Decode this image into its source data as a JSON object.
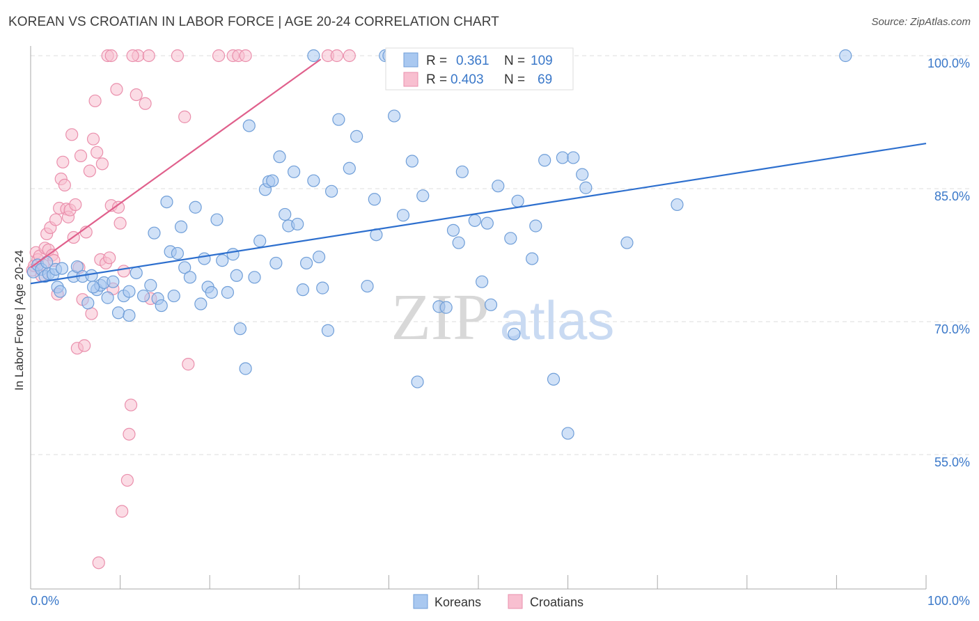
{
  "title": "KOREAN VS CROATIAN IN LABOR FORCE | AGE 20-24 CORRELATION CHART",
  "source": "Source: ZipAtlas.com",
  "watermark": {
    "zip": "ZIP",
    "atlas": "atlas"
  },
  "colors": {
    "blue_fill": "#a9c8f0",
    "blue_stroke": "#6f9ed8",
    "blue_line": "#2d6fce",
    "pink_fill": "#f8bfd0",
    "pink_stroke": "#ea8fac",
    "pink_line": "#e0608c",
    "tick_text": "#3a78c9",
    "grid": "#dedede"
  },
  "legend": {
    "rows": [
      {
        "r_label": "R =",
        "r_value": "0.361",
        "n_label": "N =",
        "n_value": "109"
      },
      {
        "r_label": "R =",
        "r_value": "0.403",
        "n_label": "N =",
        "n_value": "69"
      }
    ]
  },
  "bottom_legend": [
    "Koreans",
    "Croatians"
  ],
  "chart_data": {
    "type": "scatter",
    "title": "KOREAN VS CROATIAN IN LABOR FORCE | AGE 20-24 CORRELATION CHART",
    "ylabel": "In Labor Force | Age 20-24",
    "xlabel": "",
    "xlim": [
      0,
      100
    ],
    "ylim": [
      41,
      102
    ],
    "x_tick_labels": [
      "0.0%",
      "100.0%"
    ],
    "y_ticks": [
      55,
      70,
      85,
      100
    ],
    "y_tick_labels": [
      "55.0%",
      "70.0%",
      "85.0%",
      "100.0%"
    ],
    "grid": true,
    "legend_position": "top-center",
    "series": [
      {
        "name": "Koreans",
        "r": 0.361,
        "n": 109,
        "trend": {
          "x": [
            0,
            100
          ],
          "y": [
            74.3,
            90.1
          ]
        },
        "points": [
          [
            0.3,
            75.6
          ],
          [
            0.8,
            76.4
          ],
          [
            1.2,
            75.9
          ],
          [
            1.6,
            75.1
          ],
          [
            1.8,
            76.7
          ],
          [
            2.0,
            75.4
          ],
          [
            2.5,
            75.3
          ],
          [
            2.8,
            75.9
          ],
          [
            3.0,
            73.9
          ],
          [
            3.3,
            73.4
          ],
          [
            3.5,
            76.0
          ],
          [
            4.8,
            75.1
          ],
          [
            5.2,
            76.2
          ],
          [
            5.8,
            75.1
          ],
          [
            6.4,
            72.1
          ],
          [
            6.8,
            75.2
          ],
          [
            7.4,
            73.6
          ],
          [
            7.8,
            74.1
          ],
          [
            8.2,
            74.4
          ],
          [
            8.6,
            72.7
          ],
          [
            9.2,
            74.5
          ],
          [
            9.8,
            71.0
          ],
          [
            10.4,
            72.9
          ],
          [
            11.0,
            70.7
          ],
          [
            11.8,
            75.5
          ],
          [
            12.6,
            72.9
          ],
          [
            13.4,
            74.1
          ],
          [
            13.8,
            80.0
          ],
          [
            14.2,
            72.6
          ],
          [
            14.6,
            71.8
          ],
          [
            15.2,
            83.5
          ],
          [
            15.6,
            77.9
          ],
          [
            16.0,
            72.9
          ],
          [
            16.4,
            77.7
          ],
          [
            16.8,
            80.7
          ],
          [
            17.2,
            76.1
          ],
          [
            17.8,
            75.0
          ],
          [
            18.4,
            82.9
          ],
          [
            19.0,
            72.0
          ],
          [
            19.4,
            77.1
          ],
          [
            19.8,
            73.9
          ],
          [
            20.2,
            73.3
          ],
          [
            20.8,
            81.5
          ],
          [
            21.4,
            76.9
          ],
          [
            22.0,
            73.3
          ],
          [
            22.6,
            77.6
          ],
          [
            23.0,
            75.2
          ],
          [
            23.4,
            69.2
          ],
          [
            24.0,
            64.7
          ],
          [
            24.4,
            92.1
          ],
          [
            25.0,
            75.0
          ],
          [
            25.6,
            79.1
          ],
          [
            26.2,
            84.9
          ],
          [
            26.6,
            85.8
          ],
          [
            27.0,
            85.9
          ],
          [
            27.4,
            76.6
          ],
          [
            27.8,
            88.6
          ],
          [
            28.4,
            82.1
          ],
          [
            28.8,
            80.8
          ],
          [
            29.4,
            86.9
          ],
          [
            29.8,
            81.0
          ],
          [
            30.4,
            73.6
          ],
          [
            30.8,
            76.6
          ],
          [
            31.6,
            85.9
          ],
          [
            32.2,
            77.3
          ],
          [
            32.6,
            73.8
          ],
          [
            33.2,
            69.0
          ],
          [
            33.6,
            84.7
          ],
          [
            34.4,
            92.8
          ],
          [
            35.6,
            87.3
          ],
          [
            36.4,
            90.9
          ],
          [
            37.6,
            74.0
          ],
          [
            38.4,
            83.8
          ],
          [
            38.6,
            79.8
          ],
          [
            39.6,
            100.0
          ],
          [
            40.6,
            93.2
          ],
          [
            41.6,
            82.0
          ],
          [
            42.6,
            88.1
          ],
          [
            43.2,
            63.2
          ],
          [
            43.8,
            84.2
          ],
          [
            45.6,
            71.7
          ],
          [
            46.4,
            71.6
          ],
          [
            47.2,
            80.3
          ],
          [
            47.8,
            78.9
          ],
          [
            48.2,
            86.9
          ],
          [
            49.6,
            81.4
          ],
          [
            50.4,
            74.5
          ],
          [
            51.0,
            81.1
          ],
          [
            51.4,
            71.9
          ],
          [
            52.2,
            85.3
          ],
          [
            53.6,
            79.4
          ],
          [
            54.0,
            68.6
          ],
          [
            54.4,
            83.6
          ],
          [
            56.0,
            77.1
          ],
          [
            56.4,
            80.8
          ],
          [
            57.4,
            88.2
          ],
          [
            58.4,
            63.5
          ],
          [
            59.4,
            88.5
          ],
          [
            60.0,
            57.4
          ],
          [
            60.6,
            88.5
          ],
          [
            61.6,
            86.6
          ],
          [
            62.0,
            85.1
          ],
          [
            66.6,
            78.9
          ],
          [
            72.2,
            83.2
          ],
          [
            91.0,
            100.0
          ],
          [
            31.6,
            100.0
          ],
          [
            40.0,
            100.0
          ],
          [
            11.0,
            73.4
          ],
          [
            7.0,
            73.9
          ]
        ]
      },
      {
        "name": "Croatians",
        "r": 0.403,
        "n": 69,
        "trend": {
          "x": [
            0,
            32.4
          ],
          "y": [
            76.1,
            99.6
          ]
        },
        "points": [
          [
            0.2,
            75.8
          ],
          [
            0.4,
            76.3
          ],
          [
            0.6,
            77.8
          ],
          [
            0.8,
            77.0
          ],
          [
            1.0,
            77.4
          ],
          [
            1.2,
            75.2
          ],
          [
            1.4,
            76.4
          ],
          [
            1.6,
            78.3
          ],
          [
            1.8,
            79.9
          ],
          [
            2.0,
            78.1
          ],
          [
            2.2,
            80.6
          ],
          [
            2.4,
            77.5
          ],
          [
            2.6,
            76.9
          ],
          [
            2.8,
            81.5
          ],
          [
            3.0,
            73.1
          ],
          [
            3.2,
            82.8
          ],
          [
            3.4,
            86.1
          ],
          [
            3.6,
            88.0
          ],
          [
            3.8,
            85.4
          ],
          [
            4.0,
            82.7
          ],
          [
            4.2,
            81.8
          ],
          [
            4.4,
            82.6
          ],
          [
            4.6,
            91.1
          ],
          [
            4.8,
            79.5
          ],
          [
            5.0,
            83.2
          ],
          [
            5.2,
            67.0
          ],
          [
            5.4,
            76.1
          ],
          [
            5.6,
            88.7
          ],
          [
            5.8,
            72.5
          ],
          [
            6.0,
            67.3
          ],
          [
            6.2,
            80.1
          ],
          [
            6.6,
            87.0
          ],
          [
            6.8,
            70.9
          ],
          [
            7.0,
            90.6
          ],
          [
            7.2,
            94.9
          ],
          [
            7.4,
            89.1
          ],
          [
            7.6,
            42.8
          ],
          [
            7.8,
            77.0
          ],
          [
            8.0,
            87.8
          ],
          [
            8.4,
            76.6
          ],
          [
            8.8,
            77.2
          ],
          [
            9.0,
            83.1
          ],
          [
            9.2,
            73.7
          ],
          [
            9.6,
            96.2
          ],
          [
            9.8,
            82.9
          ],
          [
            10.0,
            81.1
          ],
          [
            10.2,
            48.6
          ],
          [
            10.4,
            75.7
          ],
          [
            10.8,
            52.1
          ],
          [
            11.0,
            57.3
          ],
          [
            11.2,
            60.6
          ],
          [
            11.8,
            95.6
          ],
          [
            12.0,
            100.0
          ],
          [
            12.8,
            94.6
          ],
          [
            13.2,
            100.0
          ],
          [
            13.4,
            72.6
          ],
          [
            16.4,
            100.0
          ],
          [
            17.2,
            93.1
          ],
          [
            17.6,
            65.2
          ],
          [
            21.0,
            100.0
          ],
          [
            22.6,
            100.0
          ],
          [
            23.2,
            100.0
          ],
          [
            24.0,
            100.0
          ],
          [
            33.2,
            100.0
          ],
          [
            34.2,
            100.0
          ],
          [
            35.6,
            100.0
          ],
          [
            8.6,
            100.0
          ],
          [
            9.0,
            100.0
          ],
          [
            11.4,
            100.0
          ]
        ]
      }
    ]
  }
}
